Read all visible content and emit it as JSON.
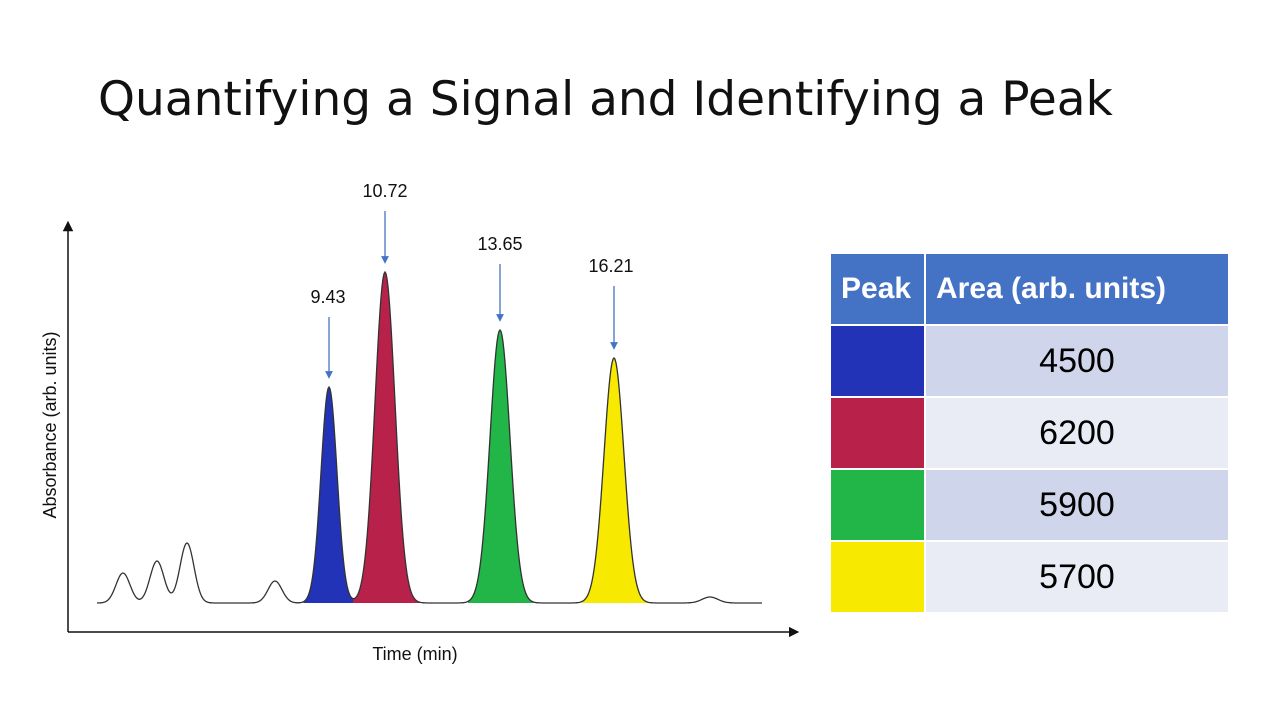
{
  "title": "Quantifying a Signal and Identifying a Peak",
  "chromatogram": {
    "x_label": "Time (min)",
    "y_label": "Absorbance (arb. units)",
    "peaks": [
      {
        "label": 9.43,
        "color": "#2233b8"
      },
      {
        "label": 10.72,
        "color": "#b8224a"
      },
      {
        "label": 13.65,
        "color": "#22b548"
      },
      {
        "label": 16.21,
        "color": "#f7ea00"
      }
    ]
  },
  "table": {
    "header": [
      "Peak",
      "Area (arb. units)"
    ],
    "rows": [
      {
        "color": "#2233b8",
        "area": 4500
      },
      {
        "color": "#b8224a",
        "area": 6200
      },
      {
        "color": "#22b548",
        "area": 5900
      },
      {
        "color": "#f7ea00",
        "area": 5700
      }
    ]
  }
}
